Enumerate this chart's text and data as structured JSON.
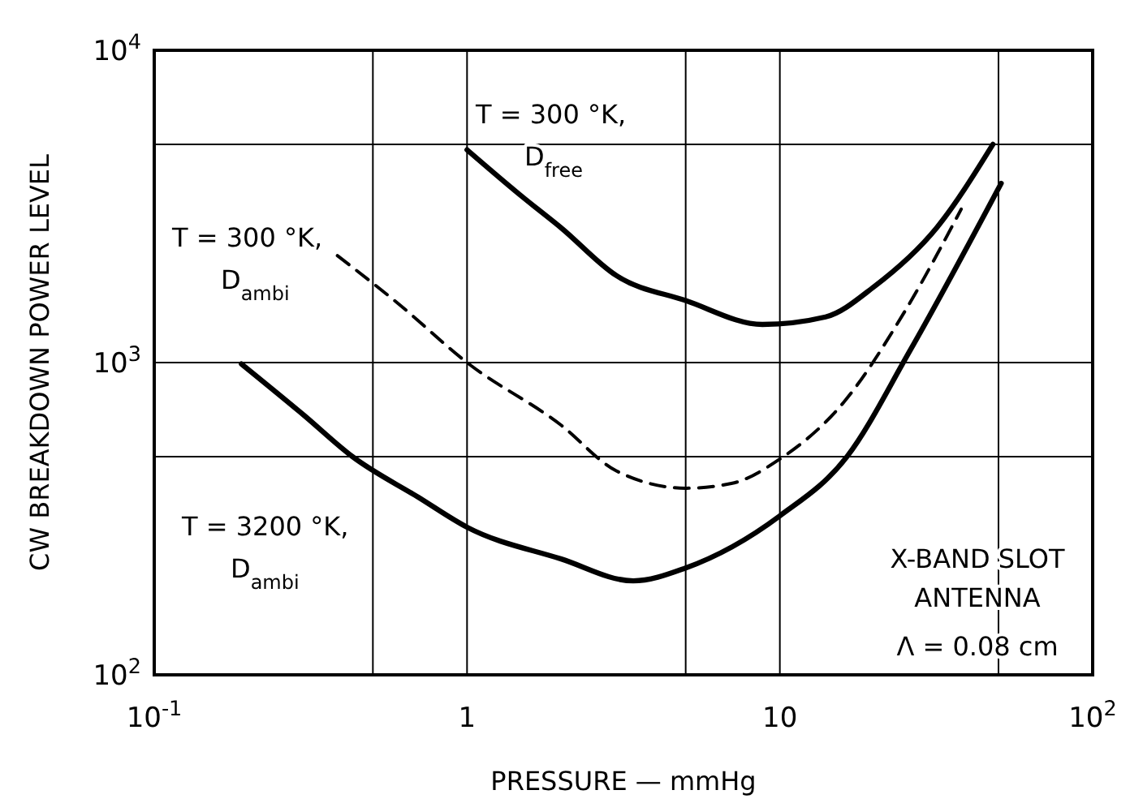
{
  "chart_data": {
    "type": "line",
    "xlabel": "PRESSURE — mmHg",
    "ylabel": "CW BREAKDOWN POWER LEVEL",
    "log": "xy",
    "grid": true,
    "marker": "none",
    "xlim": [
      0.1,
      100
    ],
    "ylim": [
      100,
      10000
    ],
    "xticks": [
      {
        "value": 0.1,
        "label": "10$^{-1}$"
      },
      {
        "value": 0.5,
        "label": null
      },
      {
        "value": 1,
        "label": "1"
      },
      {
        "value": 5,
        "label": null
      },
      {
        "value": 10,
        "label": "10"
      },
      {
        "value": 50,
        "label": null
      },
      {
        "value": 100,
        "label": "10$^{2}$"
      }
    ],
    "yticks": [
      {
        "value": 100,
        "label": "10$^{2}$"
      },
      {
        "value": 500,
        "label": null
      },
      {
        "value": 1000,
        "label": "10$^{3}$"
      },
      {
        "value": 5000,
        "label": null
      },
      {
        "value": 10000,
        "label": "10$^{4}$"
      }
    ],
    "series": [
      {
        "color": "#000000",
        "line_style": "solid",
        "x": [
          1,
          1.5,
          2,
          3,
          5,
          8.8,
          14,
          20,
          31.7,
          48
        ],
        "values": [
          4800,
          3400,
          2700,
          1900,
          1580,
          1325,
          1400,
          1750,
          2700,
          5000
        ]
      },
      {
        "color": "#000000",
        "line_style": "dashed",
        "x": [
          0.385,
          0.6,
          1,
          2,
          3,
          5,
          7,
          10,
          16,
          25,
          38
        ],
        "values": [
          2200,
          1550,
          1000,
          630,
          450,
          396,
          410,
          491,
          746,
          1450,
          3100
        ]
      },
      {
        "color": "#000000",
        "line_style": "solid",
        "x": [
          0.19,
          0.3,
          0.43,
          0.7,
          1,
          2,
          3.4,
          5,
          10,
          16.4,
          25.9,
          51
        ],
        "values": [
          990,
          680,
          500,
          370,
          297,
          235,
          200,
          220,
          323,
          500,
          1080,
          3750
        ]
      }
    ],
    "annotations": [
      "T = 300 °K,\nD$_{free}$",
      "T = 300 °K,\nD$_{ambi}$",
      "T = 3200 °K,\nD$_{ambi}$",
      "X-BAND SLOT\nANTENNA",
      "Λ = 0.08 cm"
    ]
  }
}
